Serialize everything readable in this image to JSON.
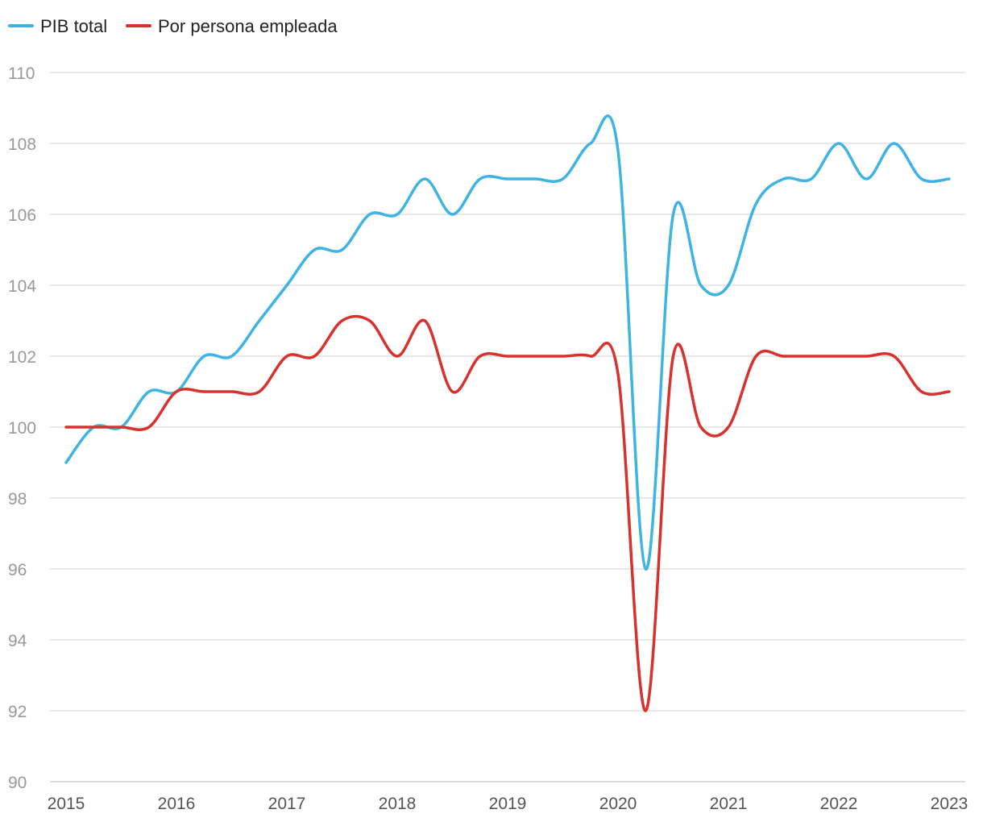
{
  "chart_data": {
    "type": "line",
    "title": "",
    "xlabel": "",
    "ylabel": "",
    "ylim": [
      90,
      110
    ],
    "xlim": [
      2015,
      2023
    ],
    "y_ticks": [
      "90",
      "92",
      "94",
      "96",
      "98",
      "100",
      "102",
      "104",
      "106",
      "108",
      "110"
    ],
    "x_ticks": [
      "2015",
      "2016",
      "2017",
      "2018",
      "2019",
      "2020",
      "2021",
      "2022",
      "2023"
    ],
    "grid": true,
    "legend_position": "top-left",
    "series": [
      {
        "name": "PIB total",
        "color": "#3fb3e2",
        "x": [
          2015,
          2015.25,
          2015.5,
          2015.75,
          2016,
          2016.25,
          2016.5,
          2016.75,
          2017,
          2017.25,
          2017.5,
          2017.75,
          2018,
          2018.25,
          2018.5,
          2018.75,
          2019,
          2019.25,
          2019.5,
          2019.75,
          2020,
          2020.25,
          2020.5,
          2020.75,
          2021,
          2021.25,
          2021.5,
          2021.75,
          2022,
          2022.25,
          2022.5,
          2022.75,
          2023
        ],
        "values": [
          99,
          100,
          100,
          101,
          101,
          102,
          102,
          103,
          104,
          105,
          105,
          106,
          106,
          107,
          106,
          107,
          107,
          107,
          107,
          108,
          107.8,
          96,
          106,
          104,
          104,
          106.3,
          107,
          107,
          108,
          107,
          108,
          107,
          107
        ]
      },
      {
        "name": "Por persona empleada",
        "color": "#d7322e",
        "x": [
          2015,
          2015.25,
          2015.5,
          2015.75,
          2016,
          2016.25,
          2016.5,
          2016.75,
          2017,
          2017.25,
          2017.5,
          2017.75,
          2018,
          2018.25,
          2018.5,
          2018.75,
          2019,
          2019.25,
          2019.5,
          2019.75,
          2020,
          2020.25,
          2020.5,
          2020.75,
          2021,
          2021.25,
          2021.5,
          2021.75,
          2022,
          2022.25,
          2022.5,
          2022.75,
          2023
        ],
        "values": [
          100,
          100,
          100,
          100,
          101,
          101,
          101,
          101,
          102,
          102,
          103,
          103,
          102,
          103,
          101,
          102,
          102,
          102,
          102,
          102,
          101.5,
          92,
          102,
          100,
          100,
          102,
          102,
          102,
          102,
          102,
          102,
          101,
          101
        ]
      }
    ]
  }
}
